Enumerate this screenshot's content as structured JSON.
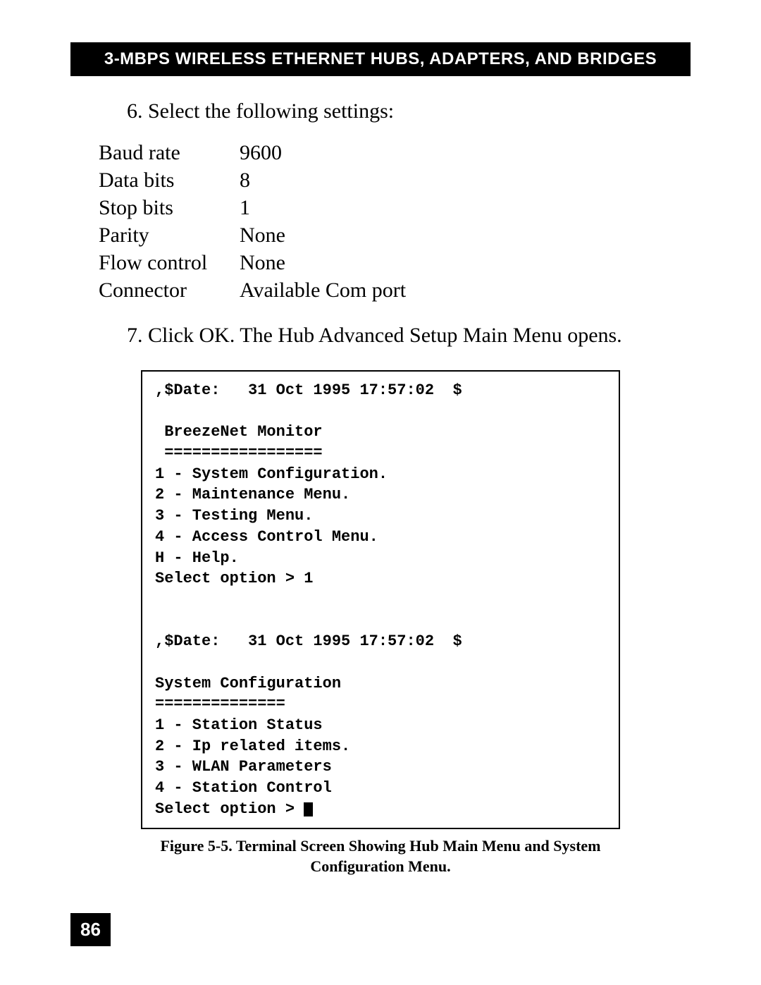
{
  "header": {
    "title": "3-MBPS WIRELESS ETHERNET HUBS, ADAPTERS, AND BRIDGES"
  },
  "step6": {
    "text": "6.  Select the following settings:"
  },
  "settings": {
    "rows": [
      {
        "label": "Baud rate",
        "value": "9600"
      },
      {
        "label": "Data bits",
        "value": "8"
      },
      {
        "label": "Stop bits",
        "value": "1"
      },
      {
        "label": "Parity",
        "value": "None"
      },
      {
        "label": "Flow control",
        "value": "None"
      },
      {
        "label": "Connector",
        "value": "Available Com port"
      }
    ]
  },
  "step7": {
    "text": "7. Click OK.  The Hub Advanced Setup Main Menu opens."
  },
  "terminal": {
    "line1": ",$Date:   31 Oct 1995 17:57:02  $",
    "line2": "",
    "line3": " BreezeNet Monitor",
    "line4": " =================",
    "line5": "1 - System Configuration.",
    "line6": "2 - Maintenance Menu.",
    "line7": "3 - Testing Menu.",
    "line8": "4 - Access Control Menu.",
    "line9": "H - Help.",
    "line10": "Select option > 1",
    "line11": "",
    "line12": "",
    "line13": ",$Date:   31 Oct 1995 17:57:02  $",
    "line14": "",
    "line15": "System Configuration",
    "line16": "==============",
    "line17": "1 - Station Status",
    "line18": "2 - Ip related items.",
    "line19": "3 - WLAN Parameters",
    "line20": "4 - Station Control",
    "line21": "Select option > "
  },
  "caption": {
    "text": "Figure 5-5.  Terminal Screen Showing Hub Main Menu and System Configuration Menu."
  },
  "pageNumber": "86",
  "colors": {
    "header_bg": "#000000",
    "header_text": "#ffffff",
    "body_text": "#000000",
    "page_bg": "#ffffff",
    "terminal_border": "#000000"
  },
  "typography": {
    "header_fontsize": 24,
    "body_fontsize": 30,
    "terminal_fontsize": 22,
    "caption_fontsize": 22,
    "pagenum_fontsize": 26
  }
}
